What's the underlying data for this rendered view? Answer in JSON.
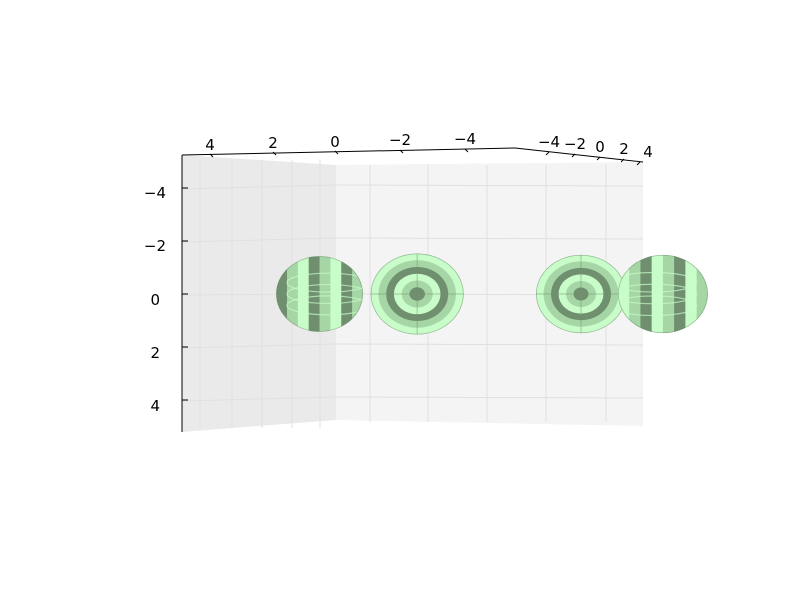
{
  "chart_data": {
    "type": "surface3d",
    "title": "",
    "xlabel": "",
    "ylabel": "",
    "zlabel": "",
    "grid": true,
    "legend": "none",
    "axes": {
      "top_left": {
        "ticks": [
          {
            "value": 4,
            "label": "4"
          },
          {
            "value": 2,
            "label": "2"
          },
          {
            "value": 0,
            "label": "0"
          },
          {
            "value": -2,
            "label": "−2"
          },
          {
            "value": -4,
            "label": "−4"
          }
        ]
      },
      "top_right": {
        "ticks": [
          {
            "value": -4,
            "label": "−4"
          },
          {
            "value": -2,
            "label": "−2"
          },
          {
            "value": 0,
            "label": "0"
          },
          {
            "value": 2,
            "label": "2"
          },
          {
            "value": 4,
            "label": "4"
          }
        ]
      },
      "vertical": {
        "ticks": [
          {
            "value": -4,
            "label": "−4"
          },
          {
            "value": -2,
            "label": "−2"
          },
          {
            "value": 0,
            "label": "0"
          },
          {
            "value": 2,
            "label": "2"
          },
          {
            "value": 4,
            "label": "4"
          }
        ]
      }
    },
    "series": [
      {
        "shape": "pointed-ellipsoid",
        "center": 4.3,
        "radius": 1.4,
        "facing": "left"
      },
      {
        "shape": "ellipsoid",
        "center": 1.2,
        "radius": 1.5,
        "facing": "viewer"
      },
      {
        "shape": "ellipsoid",
        "center": -4.0,
        "radius": 1.45,
        "facing": "viewer"
      },
      {
        "shape": "pointed-ellipsoid",
        "center": -6.6,
        "radius": 1.45,
        "facing": "right"
      }
    ],
    "colors": {
      "light": "#c8fcc8",
      "mid": "#a6d6a6",
      "dark": "#6f8f6f",
      "pane": "#f2f2f2",
      "grid": "#e3e3e3"
    }
  }
}
